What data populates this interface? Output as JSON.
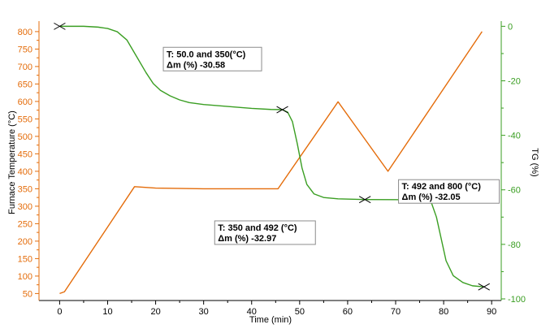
{
  "chart_data": {
    "type": "line",
    "xlabel": "Time (min)",
    "ylabel_left": "Furnace Temperature (°C)",
    "ylabel_right": "TG (%)",
    "x_ticks": [
      0,
      10,
      20,
      30,
      40,
      50,
      60,
      70,
      80,
      90
    ],
    "y_left_ticks": [
      50,
      100,
      150,
      200,
      250,
      300,
      350,
      400,
      450,
      500,
      550,
      600,
      650,
      700,
      750,
      800
    ],
    "y_right_ticks": [
      0,
      -20,
      -40,
      -60,
      -80,
      -100
    ],
    "xlim": [
      -4.3,
      92
    ],
    "ylim_left": [
      30,
      830
    ],
    "ylim_right": [
      -100.6,
      1.9
    ],
    "grid": false,
    "legend": "none",
    "colors": {
      "temperature": "#e46c0a",
      "tg": "#3a9e22",
      "left_axis": "#e46c0a",
      "right_axis": "#3a9e22",
      "marker": "#000000"
    },
    "series": [
      {
        "key": "temperature",
        "axis": "left",
        "color": "#e46c0a",
        "points": [
          [
            0,
            50
          ],
          [
            1,
            55
          ],
          [
            15.6,
            356
          ],
          [
            20,
            352
          ],
          [
            30,
            350
          ],
          [
            45.5,
            350
          ],
          [
            58,
            599
          ],
          [
            68.4,
            400
          ],
          [
            88,
            800
          ]
        ]
      },
      {
        "key": "tg",
        "axis": "right",
        "color": "#3a9e22",
        "points": [
          [
            0,
            0
          ],
          [
            5,
            0
          ],
          [
            8,
            -0.3
          ],
          [
            10,
            -0.8
          ],
          [
            12,
            -2
          ],
          [
            14,
            -5
          ],
          [
            16,
            -11
          ],
          [
            18,
            -17
          ],
          [
            19.5,
            -21
          ],
          [
            21,
            -23.5
          ],
          [
            23,
            -25.5
          ],
          [
            25,
            -27
          ],
          [
            27,
            -28
          ],
          [
            30,
            -28.7
          ],
          [
            35,
            -29.4
          ],
          [
            40,
            -30.1
          ],
          [
            44,
            -30.5
          ],
          [
            46.4,
            -30.58
          ],
          [
            47.5,
            -31.5
          ],
          [
            48.5,
            -35
          ],
          [
            49.5,
            -43
          ],
          [
            50.5,
            -52
          ],
          [
            51.5,
            -58
          ],
          [
            53,
            -61.5
          ],
          [
            55,
            -62.8
          ],
          [
            58,
            -63.3
          ],
          [
            63.6,
            -63.55
          ],
          [
            70,
            -63.6
          ],
          [
            76,
            -63.8
          ],
          [
            77.5,
            -65
          ],
          [
            78.5,
            -70
          ],
          [
            79.5,
            -78
          ],
          [
            80.5,
            -86
          ],
          [
            82,
            -91.5
          ],
          [
            84,
            -94
          ],
          [
            86,
            -95.2
          ],
          [
            88.4,
            -95.6
          ]
        ]
      }
    ],
    "markers": [
      {
        "axis": "right",
        "x": 0,
        "y": 0
      },
      {
        "axis": "right",
        "x": 46.4,
        "y": -30.58
      },
      {
        "axis": "right",
        "x": 63.6,
        "y": -63.55
      },
      {
        "axis": "right",
        "x": 88.4,
        "y": -95.6
      }
    ],
    "annotations": [
      {
        "line1": "T: 50.0 and 350(°C)",
        "line2": "Δm (%) -30.58",
        "anchor_x": 21.6,
        "anchor_y_left": 755,
        "box_w": 121
      },
      {
        "line1": "T: 350 and 492 (°C)",
        "line2": "Δm (%) -32.97",
        "anchor_x": 32.3,
        "anchor_y_left": 258,
        "box_w": 124
      },
      {
        "line1": "T: 492 and 800 (°C)",
        "line2": "Δm (%) -32.05",
        "anchor_x": 70.6,
        "anchor_y_left": 376,
        "box_w": 124
      }
    ]
  }
}
